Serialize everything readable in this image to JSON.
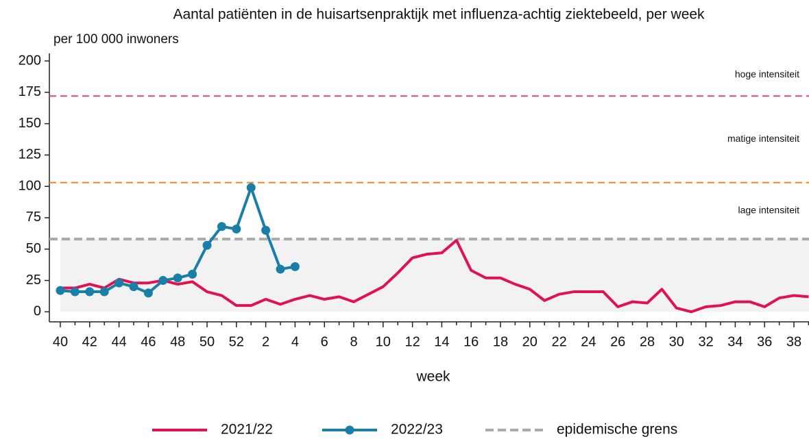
{
  "chart_data": {
    "type": "line",
    "title": "Aantal patiënten in de huisartsenpraktijk met influenza-achtig ziektebeeld, per week",
    "y_label": "per 100 000 inwoners",
    "x_label": "week",
    "categories": [
      "40",
      null,
      "42",
      null,
      "44",
      null,
      "46",
      null,
      "48",
      null,
      "50",
      null,
      "52",
      null,
      "2",
      null,
      "4",
      null,
      "6",
      null,
      "8",
      null,
      "10",
      null,
      "12",
      null,
      "14",
      null,
      "16",
      null,
      "18",
      null,
      "20",
      null,
      "22",
      null,
      "24",
      null,
      "26",
      null,
      "28",
      null,
      "30",
      null,
      "32",
      null,
      "34",
      null,
      "36",
      null,
      "38",
      null
    ],
    "series": [
      {
        "name": "2021/22",
        "color": "#e0124f",
        "markers": false,
        "values": [
          19,
          19,
          22,
          19,
          26,
          23,
          23,
          25,
          22,
          24,
          16,
          13,
          5,
          5,
          10,
          6,
          10,
          13,
          10,
          12,
          8,
          14,
          20,
          31,
          43,
          46,
          47,
          57,
          33,
          27,
          27,
          22,
          18,
          9,
          14,
          16,
          16,
          16,
          4,
          8,
          7,
          18,
          3,
          0,
          4,
          5,
          8,
          8,
          4,
          11,
          13,
          12
        ]
      },
      {
        "name": "2022/23",
        "color": "#1a7fa8",
        "markers": true,
        "values": [
          17,
          16,
          16,
          16,
          23,
          20,
          15,
          25,
          27,
          30,
          53,
          68,
          66,
          99,
          65,
          34,
          36,
          null,
          null,
          null,
          null,
          null,
          null,
          null,
          null,
          null,
          null,
          null,
          null,
          null,
          null,
          null,
          null,
          null,
          null,
          null,
          null,
          null,
          null,
          null,
          null,
          null,
          null,
          null,
          null,
          null,
          null,
          null,
          null,
          null,
          null,
          null
        ]
      }
    ],
    "reference_lines": [
      {
        "name": "epidemische grens",
        "value": 58,
        "color": "#aaaaaa"
      },
      {
        "value": 103,
        "color": "#f5821f"
      },
      {
        "value": 172,
        "color": "#e8427c"
      }
    ],
    "annotations": [
      {
        "text": "lage intensiteit",
        "color": "#f5a623"
      },
      {
        "text": "matige intensiteit",
        "color": "#f5821f"
      },
      {
        "text": "hoge intensiteit",
        "color": "#e0124f"
      }
    ],
    "ylim": [
      -8,
      206
    ],
    "yticks": [
      0,
      25,
      50,
      75,
      100,
      125,
      150,
      175,
      200
    ]
  }
}
